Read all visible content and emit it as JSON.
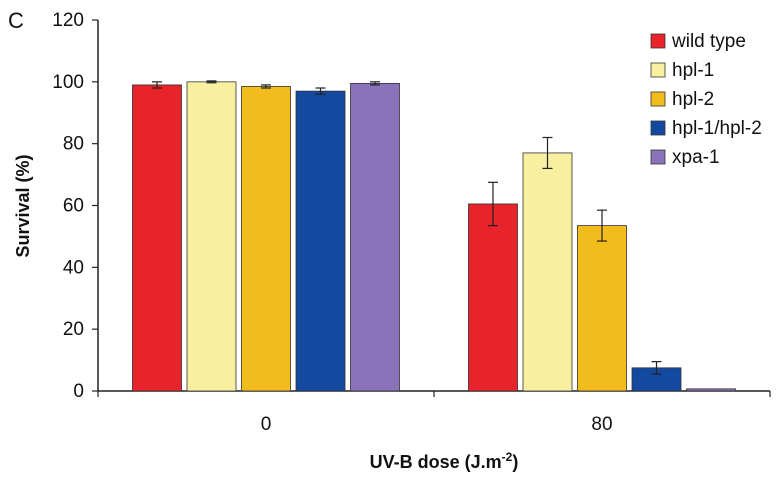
{
  "panel_label": "C",
  "chart_data": {
    "type": "bar",
    "title": "",
    "xlabel": "UV-B dose (J.m",
    "xlabel_sup": "-2",
    "xlabel_end": ")",
    "ylabel": "Survival (%)",
    "ylim": [
      0,
      120
    ],
    "yticks": [
      "0",
      "20",
      "40",
      "60",
      "80",
      "100",
      "120"
    ],
    "categories": [
      "0",
      "80"
    ],
    "legend_position": "top-right",
    "grid": false,
    "series": [
      {
        "name": "wild type",
        "color": "#e8232a",
        "values": [
          99,
          60.5
        ],
        "errors": [
          1,
          7
        ]
      },
      {
        "name": "hpl-1",
        "color": "#f8efa0",
        "values": [
          100,
          77
        ],
        "errors": [
          0.3,
          5
        ]
      },
      {
        "name": "hpl-2",
        "color": "#f2bd1c",
        "values": [
          98.5,
          53.5
        ],
        "errors": [
          0.5,
          5
        ]
      },
      {
        "name": "hpl-1/hpl-2",
        "color": "#1449a0",
        "values": [
          97,
          7.5
        ],
        "errors": [
          1,
          2
        ]
      },
      {
        "name": "xpa-1",
        "color": "#8a73b8",
        "values": [
          99.5,
          0.7
        ],
        "errors": [
          0.5,
          0
        ]
      }
    ]
  }
}
